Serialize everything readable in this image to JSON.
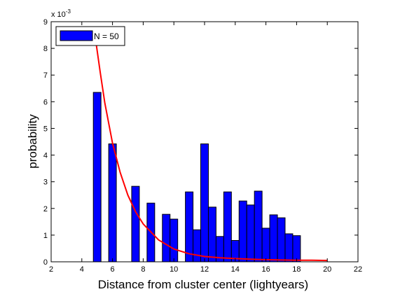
{
  "chart_data": {
    "type": "bar",
    "xlabel": "Distance from cluster center (lightyears)",
    "ylabel": "probability",
    "y_exponent": {
      "base": "x 10",
      "power": "-3"
    },
    "xlim": [
      2,
      22
    ],
    "ylim": [
      0,
      9
    ],
    "xticks": [
      2,
      4,
      6,
      8,
      10,
      12,
      14,
      16,
      18,
      20,
      22
    ],
    "yticks": [
      0,
      1,
      2,
      3,
      4,
      5,
      6,
      7,
      8,
      9
    ],
    "bar_width": 0.5,
    "series": [
      {
        "name": "N = 50",
        "color": "#0000ff",
        "x": [
          5,
          6,
          7.5,
          8.5,
          9.5,
          10,
          11,
          11.5,
          12,
          12.5,
          13,
          13.5,
          14,
          14.5,
          15,
          15.5,
          16,
          16.5,
          17,
          17.5,
          18
        ],
        "values": [
          6.35,
          4.42,
          2.83,
          2.2,
          1.78,
          1.6,
          2.62,
          1.2,
          4.42,
          2.05,
          0.95,
          2.62,
          0.8,
          2.28,
          2.13,
          2.65,
          1.26,
          1.76,
          1.65,
          1.05,
          0.98
        ]
      }
    ],
    "fit_line": {
      "color": "#ff0000",
      "x": [
        4.88,
        5.2,
        5.5,
        6,
        6.5,
        7,
        7.5,
        8,
        9,
        10,
        11,
        12,
        13,
        14,
        15,
        16,
        17,
        18,
        19,
        20
      ],
      "y": [
        8.4,
        7.1,
        5.95,
        4.45,
        3.35,
        2.5,
        1.88,
        1.42,
        0.82,
        0.48,
        0.3,
        0.2,
        0.15,
        0.12,
        0.1,
        0.08,
        0.07,
        0.06,
        0.06,
        0.05
      ]
    },
    "legend": {
      "label": "N = 50",
      "placement": "top-left"
    },
    "grid": false
  }
}
